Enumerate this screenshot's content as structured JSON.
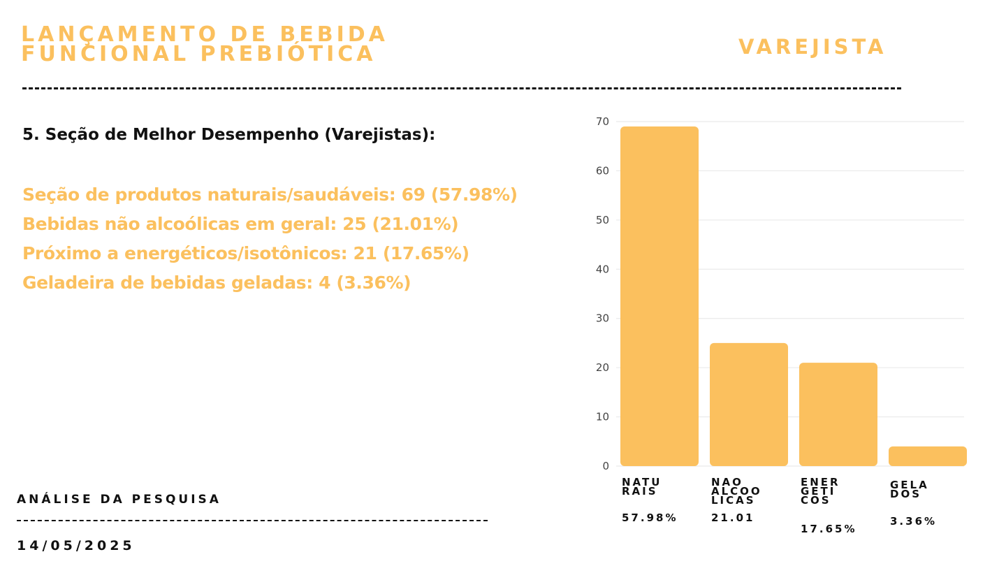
{
  "header": {
    "title_lines": [
      "LANÇAMENTO DE BEBIDA",
      "FUNCIONAL PREBIÓTICA"
    ],
    "tag": "VAREJISTA"
  },
  "section": {
    "heading": "5. Seção de Melhor Desempenho (Varejistas):",
    "items": [
      "Seção de produtos naturais/saudáveis: 69 (57.98%)",
      "Bebidas não alcoólicas em geral: 25 (21.01%)",
      "Próximo a energéticos/isotônicos: 21 (17.65%)",
      "Geladeira de bebidas geladas: 4 (3.36%)"
    ]
  },
  "footer": {
    "label": "ANÁLISE DA PESQUISA",
    "date": "14/05/2025"
  },
  "colors": {
    "accent": "#FBC05E",
    "text": "#111111",
    "grid": "#E6E6E6"
  },
  "chart_data": {
    "type": "bar",
    "categories": [
      "NATU\nRAIS",
      "NAO\nALCOO\nLICAS",
      "ENER\nGETI\nCOS",
      "GELA\nDOS"
    ],
    "percent_labels": [
      "57.98%",
      "21.01",
      "17.65%",
      "3.36%"
    ],
    "values": [
      69,
      25,
      21,
      4
    ],
    "ylim": [
      0,
      70
    ],
    "yticks": [
      0,
      10,
      20,
      30,
      40,
      50,
      60,
      70
    ],
    "grid": true,
    "title": "",
    "xlabel": "",
    "ylabel": ""
  }
}
